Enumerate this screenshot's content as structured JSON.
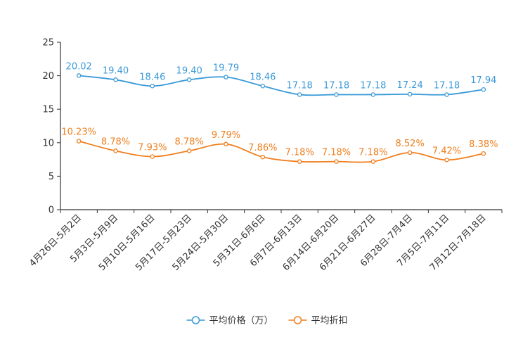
{
  "chart_data": {
    "type": "line",
    "title": "",
    "xlabel": "",
    "ylabel": "",
    "ylim": [
      0,
      25
    ],
    "yticks": [
      0,
      5,
      10,
      15,
      20,
      25
    ],
    "grid": false,
    "legend_position": "bottom-center",
    "categories": [
      "4月26日-5月2日",
      "5月3日-5月9日",
      "5月10日-5月16日",
      "5月17日-5月23日",
      "5月24日-5月30日",
      "5月31日-6月6日",
      "6月7日-6月13日",
      "6月14日-6月20日",
      "6月21日-6月27日",
      "6月28日-7月4日",
      "7月5日-7月11日",
      "7月12日-7月18日"
    ],
    "series": [
      {
        "name": "平均价格（万）",
        "color": "#3a9ad9",
        "values": [
          20.02,
          19.4,
          18.46,
          19.4,
          19.79,
          18.46,
          17.18,
          17.18,
          17.18,
          17.24,
          17.18,
          17.94
        ],
        "labels": [
          "20.02",
          "19.40",
          "18.46",
          "19.40",
          "19.79",
          "18.46",
          "17.18",
          "17.18",
          "17.18",
          "17.24",
          "17.18",
          "17.94"
        ]
      },
      {
        "name": "平均折扣",
        "color": "#f07f1e",
        "values": [
          10.23,
          8.78,
          7.93,
          8.78,
          9.79,
          7.86,
          7.18,
          7.18,
          7.18,
          8.52,
          7.42,
          8.38
        ],
        "labels": [
          "10.23%",
          "8.78%",
          "7.93%",
          "8.78%",
          "9.79%",
          "7.86%",
          "7.18%",
          "7.18%",
          "7.18%",
          "8.52%",
          "7.42%",
          "8.38%"
        ]
      }
    ]
  }
}
